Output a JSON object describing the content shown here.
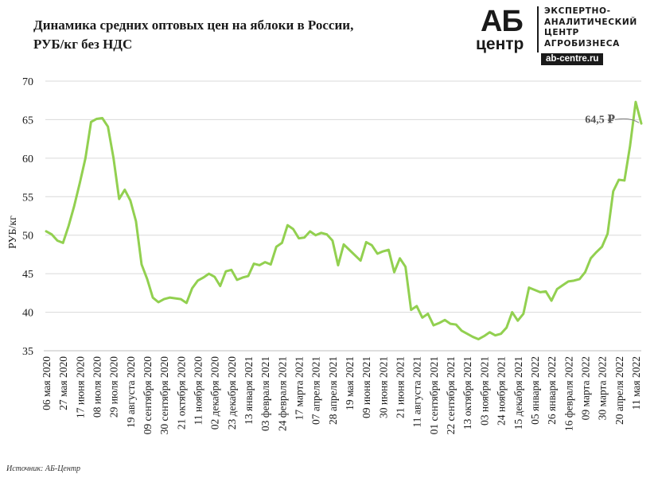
{
  "header": {
    "title_line1": "Динамика средних оптовых цен на яблоки в России,",
    "title_line2": "РУБ/кг без НДС"
  },
  "logo": {
    "mark_top": "АБ",
    "mark_bottom": "центр",
    "lines": [
      "ЭКСПЕРТНО-",
      "АНАЛИТИЧЕСКИЙ",
      "ЦЕНТР",
      "АГРОБИЗНЕСА"
    ],
    "url": "ab-centre.ru"
  },
  "source": {
    "label": "Источник:",
    "value": "АБ-Центр"
  },
  "chart_data": {
    "type": "line",
    "title": "Динамика средних оптовых цен на яблоки в России, РУБ/кг без НДС",
    "ylabel": "РУБ/кг",
    "xlabel": "",
    "ylim": [
      35,
      70
    ],
    "yticks": [
      35,
      40,
      45,
      50,
      55,
      60,
      65,
      70
    ],
    "grid": "horizontal",
    "line_color": "#92d050",
    "x_tick_labels": [
      "06 мая 2020",
      "27 мая 2020",
      "17 июня 2020",
      "08 июля 2020",
      "29 июля 2020",
      "19 августа 2020",
      "09 сентября 2020",
      "30 сентября 2020",
      "21 октября 2020",
      "11 ноября 2020",
      "02 декабря 2020",
      "23 декабря 2020",
      "13 января 2021",
      "03 февраля 2021",
      "24 февраля 2021",
      "17 марта 2021",
      "07 апреля 2021",
      "28 апреля 2021",
      "19 мая 2021",
      "09 июня 2021",
      "30 июня 2021",
      "21 июня 2021",
      "11 августа 2021",
      "01 сентября 2021",
      "22 сентября 2021",
      "13 октября 2021",
      "03 ноября 2021",
      "24 ноября 2021",
      "15 декабря 2021",
      "05 января 2022",
      "26 января 2022",
      "16 февраля 2022",
      "09 марта 2022",
      "30 марта 2022",
      "20 апреля 2022",
      "11 мая 2022"
    ],
    "weeks_between_ticks": 3,
    "series": [
      {
        "values": [
          50.5,
          50.1,
          49.3,
          49.0,
          51.2,
          53.8,
          56.8,
          60.0,
          64.7,
          65.1,
          65.2,
          64.1,
          60.0,
          54.7,
          55.9,
          54.5,
          51.8,
          46.2,
          44.3,
          41.9,
          41.3,
          41.7,
          41.9,
          41.8,
          41.7,
          41.2,
          43.1,
          44.1,
          44.5,
          45.0,
          44.6,
          43.4,
          45.3,
          45.5,
          44.2,
          44.5,
          44.7,
          46.3,
          46.1,
          46.5,
          46.2,
          48.5,
          49.0,
          51.3,
          50.8,
          49.6,
          49.7,
          50.5,
          50.0,
          50.3,
          50.1,
          49.3,
          46.1,
          48.8,
          48.1,
          47.4,
          46.7,
          49.1,
          48.7,
          47.6,
          47.9,
          48.1,
          45.2,
          47.0,
          45.9,
          40.3,
          40.8,
          39.3,
          39.8,
          38.3,
          38.6,
          39.0,
          38.5,
          38.4,
          37.6,
          37.2,
          36.8,
          36.5,
          36.9,
          37.4,
          37.0,
          37.2,
          38.0,
          40.0,
          38.9,
          39.8,
          43.2,
          42.9,
          42.6,
          42.7,
          41.5,
          43.0,
          43.5,
          44.0,
          44.1,
          44.3,
          45.2,
          47.0,
          47.8,
          48.5,
          50.2,
          55.7,
          57.2,
          57.1,
          61.6,
          67.3,
          64.5
        ]
      }
    ],
    "annotation": {
      "text": "64,5 ₽",
      "value": 64.5,
      "point": "last"
    }
  }
}
